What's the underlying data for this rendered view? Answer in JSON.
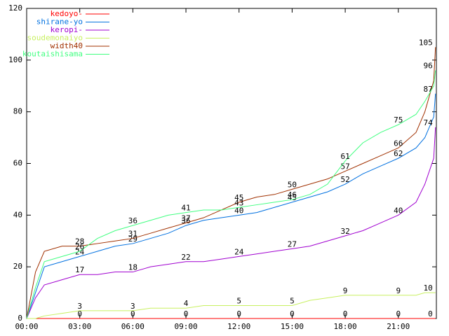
{
  "chart_data": {
    "type": "line",
    "x": [
      0,
      0.5,
      1,
      2,
      3,
      4,
      5,
      6,
      7,
      8,
      9,
      10,
      11,
      12,
      13,
      14,
      15,
      16,
      17,
      18,
      19,
      20,
      21,
      22,
      22.5,
      23,
      23.1
    ],
    "series": [
      {
        "name": "kedoyo-",
        "color": "#ff0000",
        "values": [
          0,
          0,
          0,
          0,
          0,
          0,
          0,
          0,
          0,
          0,
          0,
          0,
          0,
          0,
          0,
          0,
          0,
          0,
          0,
          0,
          0,
          0,
          0,
          0,
          0,
          0,
          0
        ]
      },
      {
        "name": "shirane-yo",
        "color": "#0070e0",
        "values": [
          0,
          10,
          20,
          22,
          24,
          26,
          28,
          29,
          31,
          33,
          36,
          38,
          39,
          40,
          41,
          43,
          45,
          47,
          49,
          52,
          56,
          59,
          62,
          66,
          70,
          78,
          87
        ]
      },
      {
        "name": "keropi-",
        "color": "#a000d0",
        "values": [
          0,
          8,
          13,
          15,
          17,
          17,
          18,
          18,
          20,
          21,
          22,
          22,
          23,
          24,
          25,
          26,
          27,
          28,
          30,
          32,
          34,
          37,
          40,
          45,
          52,
          62,
          74
        ]
      },
      {
        "name": "soudemonaiyo",
        "color": "#c8f060",
        "values": [
          0,
          0,
          1,
          2,
          3,
          3,
          3,
          3,
          4,
          4,
          4,
          5,
          5,
          5,
          5,
          5,
          5,
          7,
          8,
          9,
          9,
          9,
          9,
          9,
          10,
          10,
          10
        ]
      },
      {
        "name": "width40",
        "color": "#a03000",
        "values": [
          0,
          18,
          26,
          28,
          28,
          29,
          30,
          31,
          33,
          35,
          37,
          39,
          42,
          45,
          47,
          48,
          50,
          52,
          54,
          57,
          60,
          63,
          66,
          72,
          80,
          92,
          105
        ]
      },
      {
        "name": "koutaishisama",
        "color": "#40ff80",
        "values": [
          0,
          12,
          22,
          24,
          26,
          31,
          34,
          36,
          38,
          40,
          41,
          42,
          42,
          43,
          44,
          45,
          46,
          48,
          52,
          61,
          68,
          72,
          75,
          79,
          84,
          90,
          96
        ]
      }
    ],
    "xlim": [
      0,
      23.15
    ],
    "xticks": [
      {
        "value": 0,
        "label": "00:00"
      },
      {
        "value": 3,
        "label": "03:00"
      },
      {
        "value": 6,
        "label": "06:00"
      },
      {
        "value": 9,
        "label": "09:00"
      },
      {
        "value": 12,
        "label": "12:00"
      },
      {
        "value": 15,
        "label": "15:00"
      },
      {
        "value": 18,
        "label": "18:00"
      },
      {
        "value": 21,
        "label": "21:00"
      }
    ],
    "ylim": [
      0,
      120
    ],
    "yticks": [
      0,
      20,
      40,
      60,
      80,
      100,
      120
    ],
    "grid": false
  }
}
